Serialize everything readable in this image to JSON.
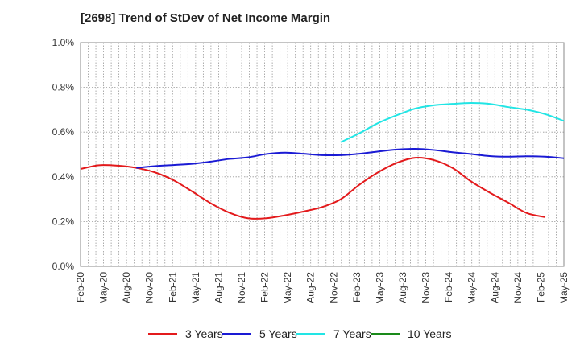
{
  "chart_data": {
    "type": "line",
    "title": "[2698]  Trend of StDev of Net Income Margin",
    "xlabel": "",
    "ylabel": "",
    "ylim": [
      0,
      1.0
    ],
    "y_ticks": [
      "0.0%",
      "0.2%",
      "0.4%",
      "0.6%",
      "0.8%",
      "1.0%"
    ],
    "x_ticks": [
      "Feb-20",
      "May-20",
      "Aug-20",
      "Nov-20",
      "Feb-21",
      "May-21",
      "Aug-21",
      "Nov-21",
      "Feb-22",
      "May-22",
      "Aug-22",
      "Nov-22",
      "Feb-23",
      "May-23",
      "Aug-23",
      "Nov-23",
      "Feb-24",
      "May-24",
      "Aug-24",
      "Nov-24",
      "Feb-25",
      "May-25"
    ],
    "grid": true,
    "legend_placement": "bottom",
    "series": [
      {
        "name": "3 Years",
        "color": "#e31a1c",
        "points": [
          [
            0,
            0.435
          ],
          [
            1,
            0.452
          ],
          [
            2,
            0.45
          ],
          [
            3,
            0.44
          ],
          [
            4,
            0.42
          ],
          [
            5,
            0.385
          ],
          [
            6,
            0.335
          ],
          [
            7,
            0.282
          ],
          [
            8,
            0.24
          ],
          [
            9,
            0.215
          ],
          [
            10,
            0.215
          ],
          [
            11,
            0.228
          ],
          [
            12,
            0.245
          ],
          [
            13,
            0.265
          ],
          [
            14,
            0.3
          ],
          [
            15,
            0.365
          ],
          [
            16,
            0.42
          ],
          [
            17,
            0.462
          ],
          [
            18,
            0.485
          ],
          [
            19,
            0.475
          ],
          [
            20,
            0.44
          ],
          [
            21,
            0.38
          ],
          [
            22,
            0.33
          ],
          [
            23,
            0.285
          ],
          [
            24,
            0.238
          ],
          [
            25,
            0.22
          ]
        ]
      },
      {
        "name": "5 Years",
        "color": "#1a1ad4",
        "points": [
          [
            3,
            0.44
          ],
          [
            4,
            0.448
          ],
          [
            5,
            0.453
          ],
          [
            6,
            0.458
          ],
          [
            7,
            0.468
          ],
          [
            8,
            0.48
          ],
          [
            9,
            0.487
          ],
          [
            10,
            0.502
          ],
          [
            11,
            0.508
          ],
          [
            12,
            0.503
          ],
          [
            13,
            0.497
          ],
          [
            14,
            0.497
          ],
          [
            15,
            0.503
          ],
          [
            16,
            0.513
          ],
          [
            17,
            0.522
          ],
          [
            18,
            0.525
          ],
          [
            19,
            0.52
          ],
          [
            20,
            0.51
          ],
          [
            21,
            0.502
          ],
          [
            22,
            0.493
          ],
          [
            23,
            0.49
          ],
          [
            24,
            0.492
          ],
          [
            25,
            0.49
          ],
          [
            26,
            0.483
          ]
        ]
      },
      {
        "name": "7 Years",
        "color": "#22e5e5",
        "points": [
          [
            14,
            0.555
          ],
          [
            15,
            0.595
          ],
          [
            16,
            0.64
          ],
          [
            17,
            0.675
          ],
          [
            18,
            0.705
          ],
          [
            19,
            0.72
          ],
          [
            20,
            0.726
          ],
          [
            21,
            0.73
          ],
          [
            22,
            0.726
          ],
          [
            23,
            0.712
          ],
          [
            24,
            0.7
          ],
          [
            25,
            0.68
          ],
          [
            26,
            0.65
          ]
        ]
      },
      {
        "name": "10 Years",
        "color": "#1a8a1a",
        "points": []
      }
    ]
  }
}
